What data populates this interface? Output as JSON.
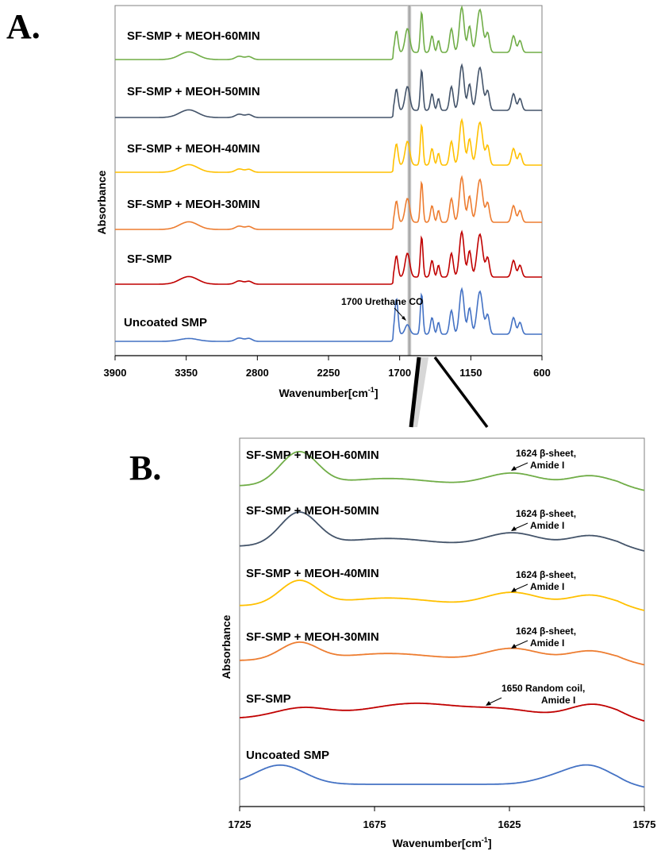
{
  "chart_data": [
    {
      "panel": "A.",
      "type": "line",
      "xlabel": "Wavenumber[cm",
      "xlabel_sup": "-1",
      "xlabel_end": "]",
      "ylabel": "Absorbance",
      "xlim": [
        3900,
        600
      ],
      "xticks": [
        "3900",
        "3350",
        "2800",
        "2250",
        "1700",
        "1150",
        "600"
      ],
      "xtick_values": [
        3900,
        3350,
        2800,
        2250,
        1700,
        1150,
        600
      ],
      "highlight_band": [
        1640,
        1610
      ],
      "annotation": {
        "text": "1700 Urethane CO",
        "series": "Uncoated SMP",
        "x": 1700
      },
      "series": [
        {
          "name": "SF-SMP + MEOH-60MIN",
          "color": "#70ad47"
        },
        {
          "name": "SF-SMP + MEOH-50MIN",
          "color": "#44546a"
        },
        {
          "name": "SF-SMP + MEOH-40MIN",
          "color": "#ffc000"
        },
        {
          "name": "SF-SMP + MEOH-30MIN",
          "color": "#ed7d31"
        },
        {
          "name": "SF-SMP",
          "color": "#c00000"
        },
        {
          "name": "Uncoated SMP",
          "color": "#4472c4"
        }
      ]
    },
    {
      "panel": "B.",
      "type": "line",
      "xlabel": "Wavenumber[cm",
      "xlabel_sup": "-1",
      "xlabel_end": "]",
      "ylabel": "Absorbance",
      "xlim": [
        1725,
        1575
      ],
      "xticks": [
        "1725",
        "1675",
        "1625",
        "1575"
      ],
      "xtick_values": [
        1725,
        1675,
        1625,
        1575
      ],
      "series": [
        {
          "name": "SF-SMP + MEOH-60MIN",
          "color": "#70ad47",
          "annotation": [
            "1624 β-sheet,",
            "Amide I"
          ]
        },
        {
          "name": "SF-SMP + MEOH-50MIN",
          "color": "#44546a",
          "annotation": [
            "1624 β-sheet,",
            "Amide I"
          ]
        },
        {
          "name": "SF-SMP + MEOH-40MIN",
          "color": "#ffc000",
          "annotation": [
            "1624 β-sheet,",
            "Amide I"
          ]
        },
        {
          "name": "SF-SMP + MEOH-30MIN",
          "color": "#ed7d31",
          "annotation": [
            "1624 β-sheet,",
            "Amide I"
          ]
        },
        {
          "name": "SF-SMP",
          "color": "#c00000",
          "annotation": [
            "1650 Random coil,",
            "Amide I"
          ]
        },
        {
          "name": "Uncoated SMP",
          "color": "#4472c4",
          "annotation": []
        }
      ]
    }
  ]
}
